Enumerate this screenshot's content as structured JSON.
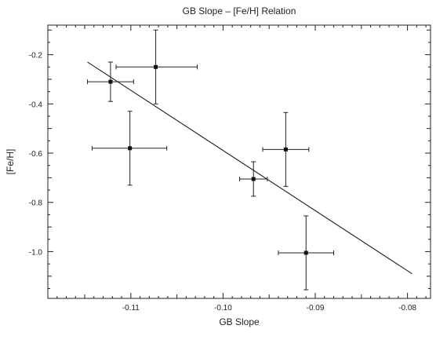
{
  "chart_data": {
    "type": "scatter",
    "title": "GB Slope – [Fe/H] Relation",
    "xlabel": "GB Slope",
    "ylabel": "[Fe/H]",
    "xlim": [
      -0.119,
      -0.0775
    ],
    "ylim": [
      -1.19,
      -0.08
    ],
    "x_ticks": [
      -0.11,
      -0.1,
      -0.09,
      -0.08
    ],
    "x_tick_labels": [
      "-0.11",
      "-0.10",
      "-0.09",
      "-0.08"
    ],
    "y_ticks": [
      -0.2,
      -0.4,
      -0.6,
      -0.8,
      -1.0
    ],
    "y_tick_labels": [
      "-0.2",
      "-0.4",
      "-0.6",
      "-0.8",
      "-1.0"
    ],
    "grid": false,
    "points": [
      {
        "x": -0.1122,
        "y": -0.31,
        "xerr": [
          0.0025,
          0.0025
        ],
        "yerr": [
          0.08,
          0.08
        ]
      },
      {
        "x": -0.1073,
        "y": -0.25,
        "xerr": [
          0.0043,
          0.0045
        ],
        "yerr": [
          0.15,
          0.15
        ]
      },
      {
        "x": -0.1101,
        "y": -0.58,
        "xerr": [
          0.0041,
          0.004
        ],
        "yerr": [
          0.15,
          0.15
        ]
      },
      {
        "x": -0.0967,
        "y": -0.705,
        "xerr": [
          0.0015,
          0.0015
        ],
        "yerr": [
          0.07,
          0.07
        ]
      },
      {
        "x": -0.0932,
        "y": -0.585,
        "xerr": [
          0.0025,
          0.0025
        ],
        "yerr": [
          0.15,
          0.15
        ]
      },
      {
        "x": -0.091,
        "y": -1.005,
        "xerr": [
          0.003,
          0.003
        ],
        "yerr": [
          0.15,
          0.15
        ]
      }
    ],
    "fit_line": {
      "x": [
        -0.1147,
        -0.0795
      ],
      "y": [
        -0.23,
        -1.09
      ]
    }
  }
}
